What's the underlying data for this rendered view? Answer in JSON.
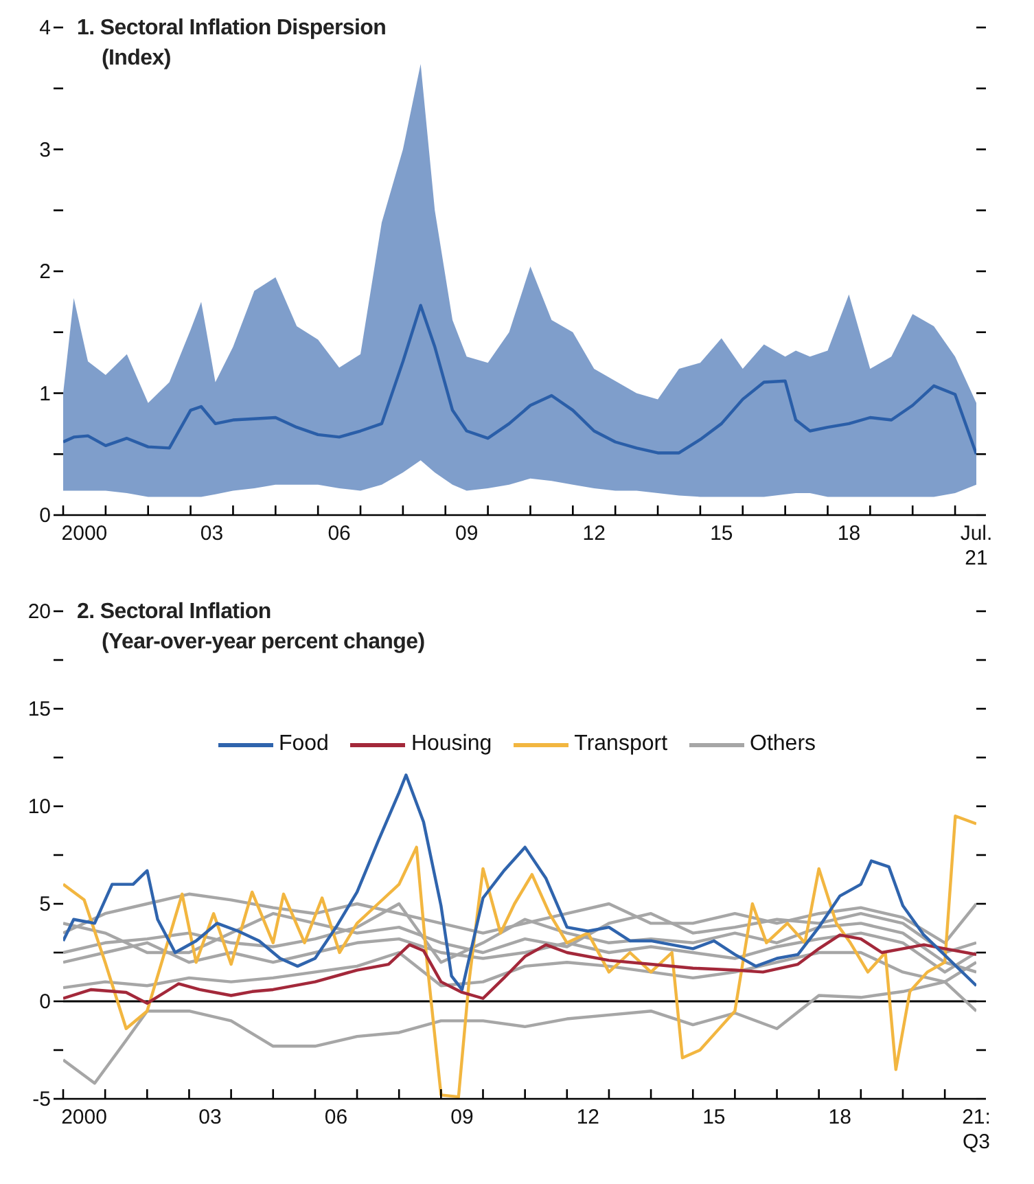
{
  "chart_data": [
    {
      "type": "line",
      "title": "1. Sectoral Inflation Dispersion",
      "subtitle": "(Index)",
      "marker": "none",
      "xlim": [
        "2000-01",
        "2021-07"
      ],
      "xticks": [
        {
          "value": "2000",
          "label": null
        },
        {
          "value": "2000-07",
          "label": "2000"
        },
        {
          "value": "2001",
          "label": null
        },
        {
          "value": "2002",
          "label": null
        },
        {
          "value": "2003",
          "label": null
        },
        {
          "value": "2003-07",
          "label": "03"
        },
        {
          "value": "2004",
          "label": null
        },
        {
          "value": "2005",
          "label": null
        },
        {
          "value": "2006",
          "label": null
        },
        {
          "value": "2006-07",
          "label": "06"
        },
        {
          "value": "2007",
          "label": null
        },
        {
          "value": "2008",
          "label": null
        },
        {
          "value": "2009",
          "label": null
        },
        {
          "value": "2009-07",
          "label": "09"
        },
        {
          "value": "2010",
          "label": null
        },
        {
          "value": "2011",
          "label": null
        },
        {
          "value": "2012",
          "label": null
        },
        {
          "value": "2012-07",
          "label": "12"
        },
        {
          "value": "2013",
          "label": null
        },
        {
          "value": "2014",
          "label": null
        },
        {
          "value": "2015",
          "label": null
        },
        {
          "value": "2015-07",
          "label": "15"
        },
        {
          "value": "2016",
          "label": null
        },
        {
          "value": "2017",
          "label": null
        },
        {
          "value": "2018",
          "label": null
        },
        {
          "value": "2018-07",
          "label": "18"
        },
        {
          "value": "2019",
          "label": null
        },
        {
          "value": "2020",
          "label": null
        },
        {
          "value": "2021",
          "label": null
        },
        {
          "value": "2021-07",
          "label": "Jul.\n21"
        }
      ],
      "ylim": [
        0,
        4
      ],
      "yticks": [
        0,
        {
          "value": 0.5,
          "label": null
        },
        1,
        {
          "value": 1.5,
          "label": null
        },
        2,
        {
          "value": 2.5,
          "label": null
        },
        3,
        {
          "value": 3.5,
          "label": null
        },
        4
      ],
      "x": [
        "2000-01",
        "2000-04",
        "2000-08",
        "2001-01",
        "2001-07",
        "2002-01",
        "2002-07",
        "2003-01",
        "2003-04",
        "2003-08",
        "2004-01",
        "2004-07",
        "2005-01",
        "2005-07",
        "2006-01",
        "2006-07",
        "2007-01",
        "2007-07",
        "2008-01",
        "2008-06",
        "2008-10",
        "2009-03",
        "2009-07",
        "2010-01",
        "2010-07",
        "2011-01",
        "2011-07",
        "2012-01",
        "2012-07",
        "2013-01",
        "2013-07",
        "2014-01",
        "2014-07",
        "2015-01",
        "2015-07",
        "2016-01",
        "2016-07",
        "2017-01",
        "2017-04",
        "2017-08",
        "2018-01",
        "2018-07",
        "2019-01",
        "2019-07",
        "2020-01",
        "2020-07",
        "2021-01",
        "2021-07"
      ],
      "series": [
        {
          "color": "#2a5ea8",
          "values": [
            0.6,
            0.64,
            0.65,
            0.57,
            0.63,
            0.56,
            0.55,
            0.86,
            0.89,
            0.75,
            0.78,
            0.79,
            0.8,
            0.72,
            0.66,
            0.64,
            0.69,
            0.75,
            1.26,
            1.72,
            1.38,
            0.86,
            0.69,
            0.63,
            0.75,
            0.9,
            0.98,
            0.86,
            0.69,
            0.6,
            0.55,
            0.51,
            0.51,
            0.62,
            0.75,
            0.95,
            1.09,
            1.1,
            0.78,
            0.69,
            0.72,
            0.75,
            0.8,
            0.78,
            0.9,
            1.06,
            0.99,
            0.5
          ],
          "lower": [
            0.2,
            0.2,
            0.2,
            0.2,
            0.18,
            0.15,
            0.15,
            0.15,
            0.15,
            0.17,
            0.2,
            0.22,
            0.25,
            0.25,
            0.25,
            0.22,
            0.2,
            0.25,
            0.35,
            0.45,
            0.35,
            0.25,
            0.2,
            0.22,
            0.25,
            0.3,
            0.28,
            0.25,
            0.22,
            0.2,
            0.2,
            0.18,
            0.16,
            0.15,
            0.15,
            0.15,
            0.15,
            0.17,
            0.18,
            0.18,
            0.15,
            0.15,
            0.15,
            0.15,
            0.15,
            0.15,
            0.18,
            0.25
          ],
          "upper": [
            1.0,
            1.78,
            1.26,
            1.15,
            1.32,
            0.92,
            1.09,
            1.52,
            1.75,
            1.09,
            1.38,
            1.84,
            1.95,
            1.55,
            1.44,
            1.21,
            1.32,
            2.4,
            3.0,
            3.7,
            2.5,
            1.6,
            1.3,
            1.25,
            1.5,
            2.04,
            1.6,
            1.5,
            1.2,
            1.1,
            1.0,
            0.95,
            1.2,
            1.25,
            1.45,
            1.2,
            1.4,
            1.3,
            1.35,
            1.3,
            1.35,
            1.81,
            1.2,
            1.3,
            1.65,
            1.55,
            1.3,
            0.92
          ]
        }
      ]
    },
    {
      "type": "line",
      "title": "2. Sectoral Inflation",
      "subtitle": "(Year-over-year percent change)",
      "marker": "none",
      "legend": "top",
      "xlim": [
        "2000-01",
        "2021-10"
      ],
      "xticks": [
        {
          "value": "2000",
          "label": null
        },
        {
          "value": "2000-07",
          "label": "2000"
        },
        {
          "value": "2001",
          "label": null
        },
        {
          "value": "2002",
          "label": null
        },
        {
          "value": "2003",
          "label": null
        },
        {
          "value": "2003-07",
          "label": "03"
        },
        {
          "value": "2004",
          "label": null
        },
        {
          "value": "2005",
          "label": null
        },
        {
          "value": "2006",
          "label": null
        },
        {
          "value": "2006-07",
          "label": "06"
        },
        {
          "value": "2007",
          "label": null
        },
        {
          "value": "2008",
          "label": null
        },
        {
          "value": "2009",
          "label": null
        },
        {
          "value": "2009-07",
          "label": "09"
        },
        {
          "value": "2010",
          "label": null
        },
        {
          "value": "2011",
          "label": null
        },
        {
          "value": "2012",
          "label": null
        },
        {
          "value": "2012-07",
          "label": "12"
        },
        {
          "value": "2013",
          "label": null
        },
        {
          "value": "2014",
          "label": null
        },
        {
          "value": "2015",
          "label": null
        },
        {
          "value": "2015-07",
          "label": "15"
        },
        {
          "value": "2016",
          "label": null
        },
        {
          "value": "2017",
          "label": null
        },
        {
          "value": "2018",
          "label": null
        },
        {
          "value": "2018-07",
          "label": "18"
        },
        {
          "value": "2019",
          "label": null
        },
        {
          "value": "2020",
          "label": null
        },
        {
          "value": "2021",
          "label": null
        },
        {
          "value": "2021-10",
          "label": "21:\nQ3"
        }
      ],
      "ylim": [
        -5,
        20
      ],
      "yticks": [
        -5,
        {
          "value": -2.5,
          "label": null
        },
        0,
        {
          "value": 2.5,
          "label": null
        },
        5,
        {
          "value": 7.5,
          "label": null
        },
        10,
        {
          "value": 12.5,
          "label": null
        },
        15,
        {
          "value": 17.5,
          "label": null
        },
        20
      ],
      "ref_lines": [
        {
          "axis": "y",
          "value": 0,
          "color": "#000000"
        }
      ],
      "series": [
        {
          "name": "Food",
          "color": "#2f64ad",
          "x": [
            "2000-01",
            "2000-04",
            "2000-10",
            "2001-03",
            "2001-09",
            "2002-01",
            "2002-04",
            "2002-09",
            "2003-03",
            "2003-09",
            "2004-03",
            "2004-09",
            "2005-03",
            "2005-08",
            "2006-01",
            "2006-07",
            "2007-01",
            "2007-07",
            "2008-01",
            "2008-03",
            "2008-08",
            "2009-01",
            "2009-04",
            "2009-07",
            "2010-01",
            "2010-07",
            "2011-01",
            "2011-07",
            "2012-01",
            "2012-07",
            "2013-01",
            "2013-07",
            "2014-01",
            "2014-07",
            "2015-01",
            "2015-07",
            "2016-01",
            "2016-07",
            "2017-01",
            "2017-07",
            "2018-01",
            "2018-07",
            "2019-01",
            "2019-04",
            "2019-09",
            "2020-01",
            "2020-07",
            "2021-10"
          ],
          "values": [
            3.1,
            4.2,
            4.0,
            6.0,
            6.0,
            6.7,
            4.2,
            2.5,
            3.1,
            4.0,
            3.6,
            3.1,
            2.2,
            1.8,
            2.2,
            3.8,
            5.6,
            8.2,
            10.7,
            11.6,
            9.2,
            4.9,
            1.3,
            0.6,
            5.3,
            6.7,
            7.9,
            6.3,
            3.8,
            3.6,
            3.8,
            3.1,
            3.1,
            2.9,
            2.7,
            3.1,
            2.4,
            1.8,
            2.2,
            2.4,
            3.8,
            5.4,
            6.0,
            7.2,
            6.9,
            4.9,
            3.4,
            0.8
          ]
        },
        {
          "name": "Housing",
          "color": "#a3283a",
          "x": [
            "2000-01",
            "2000-09",
            "2001-07",
            "2002-01",
            "2002-10",
            "2003-04",
            "2004-01",
            "2004-07",
            "2005-01",
            "2006-01",
            "2007-01",
            "2007-10",
            "2008-04",
            "2008-08",
            "2009-01",
            "2009-07",
            "2010-01",
            "2010-07",
            "2011-01",
            "2011-07",
            "2012-01",
            "2013-01",
            "2014-01",
            "2015-01",
            "2016-01",
            "2016-09",
            "2017-07",
            "2018-01",
            "2018-07",
            "2019-01",
            "2019-07",
            "2020-01",
            "2020-07",
            "2021-01",
            "2021-10"
          ],
          "values": [
            0.15,
            0.6,
            0.46,
            -0.1,
            0.9,
            0.6,
            0.3,
            0.5,
            0.6,
            1.0,
            1.6,
            1.9,
            2.9,
            2.6,
            1.0,
            0.46,
            0.15,
            1.2,
            2.3,
            2.9,
            2.5,
            2.1,
            1.9,
            1.7,
            1.6,
            1.5,
            1.9,
            2.7,
            3.4,
            3.2,
            2.5,
            2.7,
            2.9,
            2.7,
            2.4
          ]
        },
        {
          "name": "Transport",
          "color": "#f2b640",
          "x": [
            "2000-01",
            "2000-07",
            "2001-01",
            "2001-07",
            "2002-01",
            "2002-11",
            "2003-03",
            "2003-08",
            "2004-01",
            "2004-07",
            "2005-01",
            "2005-04",
            "2005-10",
            "2006-03",
            "2006-08",
            "2007-01",
            "2007-07",
            "2008-01",
            "2008-06",
            "2008-09",
            "2009-01",
            "2009-06",
            "2009-09",
            "2010-01",
            "2010-06",
            "2010-10",
            "2011-03",
            "2011-08",
            "2012-01",
            "2012-07",
            "2013-01",
            "2013-07",
            "2014-01",
            "2014-07",
            "2014-10",
            "2015-03",
            "2015-08",
            "2016-01",
            "2016-06",
            "2016-10",
            "2017-04",
            "2017-09",
            "2018-01",
            "2018-06",
            "2018-10",
            "2019-03",
            "2019-08",
            "2019-11",
            "2020-03",
            "2020-08",
            "2021-01",
            "2021-04",
            "2021-10"
          ],
          "values": [
            6.0,
            5.2,
            2.0,
            -1.4,
            -0.5,
            5.5,
            2.0,
            4.5,
            1.9,
            5.6,
            3.0,
            5.5,
            3.0,
            5.3,
            2.5,
            4.0,
            5.0,
            6.0,
            7.9,
            2.0,
            -4.8,
            -4.9,
            1.0,
            6.8,
            3.5,
            5.0,
            6.5,
            4.5,
            3.0,
            3.5,
            1.5,
            2.5,
            1.5,
            2.5,
            -2.9,
            -2.5,
            -1.5,
            -0.5,
            5.0,
            3.0,
            4.0,
            3.0,
            6.8,
            4.0,
            3.0,
            1.5,
            2.5,
            -3.5,
            0.5,
            1.5,
            2.0,
            9.5,
            9.1
          ]
        },
        {
          "name": "Others",
          "color": "#a6a6a6",
          "x": [
            "2000",
            "2001",
            "2002",
            "2003",
            "2004",
            "2005",
            "2006",
            "2007",
            "2008",
            "2009",
            "2010",
            "2011",
            "2012",
            "2013",
            "2014",
            "2015",
            "2016",
            "2017",
            "2018",
            "2019",
            "2020",
            "2021",
            "2021-10"
          ],
          "values": [
            3.5,
            4.5,
            5.0,
            5.5,
            5.2,
            4.8,
            4.5,
            5.0,
            4.5,
            4.0,
            3.5,
            4.0,
            4.5,
            5.0,
            4.0,
            4.0,
            4.5,
            4.0,
            4.5,
            4.8,
            4.3,
            3.0,
            5.0
          ]
        },
        {
          "color": "#a6a6a6",
          "x": [
            "2000",
            "2000-10",
            "2001-07",
            "2002",
            "2003",
            "2004",
            "2005",
            "2006",
            "2007",
            "2008",
            "2009",
            "2010",
            "2011",
            "2012",
            "2013",
            "2014",
            "2015",
            "2016",
            "2017",
            "2018",
            "2019",
            "2020",
            "2021",
            "2021-10"
          ],
          "values": [
            -3.0,
            -4.2,
            -2.0,
            -0.5,
            -0.5,
            -1.0,
            -2.3,
            -2.3,
            -1.8,
            -1.6,
            -1.0,
            -1.0,
            -1.3,
            -0.9,
            -0.7,
            -0.5,
            -1.2,
            -0.6,
            -1.4,
            0.3,
            0.2,
            0.5,
            1.0,
            -0.5
          ]
        },
        {
          "color": "#a6a6a6",
          "x": [
            "2000",
            "2001",
            "2002",
            "2003",
            "2004",
            "2005",
            "2006",
            "2007",
            "2008",
            "2009",
            "2010",
            "2011",
            "2012",
            "2013",
            "2014",
            "2015",
            "2016",
            "2017",
            "2018",
            "2019",
            "2020",
            "2021",
            "2021-10"
          ],
          "values": [
            0.7,
            1.0,
            0.8,
            1.2,
            1.0,
            1.2,
            1.5,
            1.8,
            2.5,
            0.8,
            1.0,
            1.8,
            2.0,
            1.8,
            1.5,
            1.2,
            1.5,
            2.0,
            2.5,
            2.5,
            1.5,
            1.0,
            2.0
          ]
        },
        {
          "color": "#a6a6a6",
          "x": [
            "2000",
            "2001",
            "2002",
            "2003",
            "2004",
            "2005",
            "2006",
            "2007",
            "2008",
            "2009",
            "2010",
            "2011",
            "2012",
            "2013",
            "2014",
            "2015",
            "2016",
            "2017",
            "2018",
            "2019",
            "2020",
            "2021",
            "2021-10"
          ],
          "values": [
            2.5,
            3.0,
            3.2,
            3.5,
            3.0,
            2.8,
            3.2,
            3.8,
            5.0,
            2.0,
            3.0,
            4.2,
            3.5,
            3.0,
            3.2,
            3.0,
            3.5,
            3.0,
            3.8,
            4.0,
            3.5,
            2.0,
            1.5
          ]
        },
        {
          "color": "#a6a6a6",
          "x": [
            "2000",
            "2001",
            "2002",
            "2003",
            "2004",
            "2005",
            "2006",
            "2007",
            "2008",
            "2009",
            "2010",
            "2011",
            "2012",
            "2013",
            "2014",
            "2015",
            "2016",
            "2017",
            "2018",
            "2019",
            "2020",
            "2021",
            "2021-10"
          ],
          "values": [
            4.0,
            3.5,
            2.5,
            2.5,
            3.5,
            4.5,
            4.0,
            3.5,
            3.8,
            3.0,
            2.5,
            3.2,
            2.8,
            4.0,
            4.5,
            3.5,
            3.8,
            4.2,
            4.0,
            4.5,
            4.0,
            2.5,
            3.0
          ]
        },
        {
          "color": "#a6a6a6",
          "x": [
            "2000",
            "2001",
            "2002",
            "2003",
            "2004",
            "2005",
            "2006",
            "2007",
            "2008",
            "2009",
            "2010",
            "2011",
            "2012",
            "2013",
            "2014",
            "2015",
            "2016",
            "2017",
            "2018",
            "2019",
            "2020",
            "2021",
            "2021-10"
          ],
          "values": [
            2.0,
            2.5,
            3.0,
            2.0,
            2.5,
            2.0,
            2.5,
            3.0,
            3.2,
            2.5,
            2.2,
            2.5,
            3.0,
            2.5,
            2.8,
            2.5,
            2.2,
            2.8,
            3.2,
            3.5,
            3.0,
            1.5,
            2.5
          ]
        }
      ]
    }
  ]
}
